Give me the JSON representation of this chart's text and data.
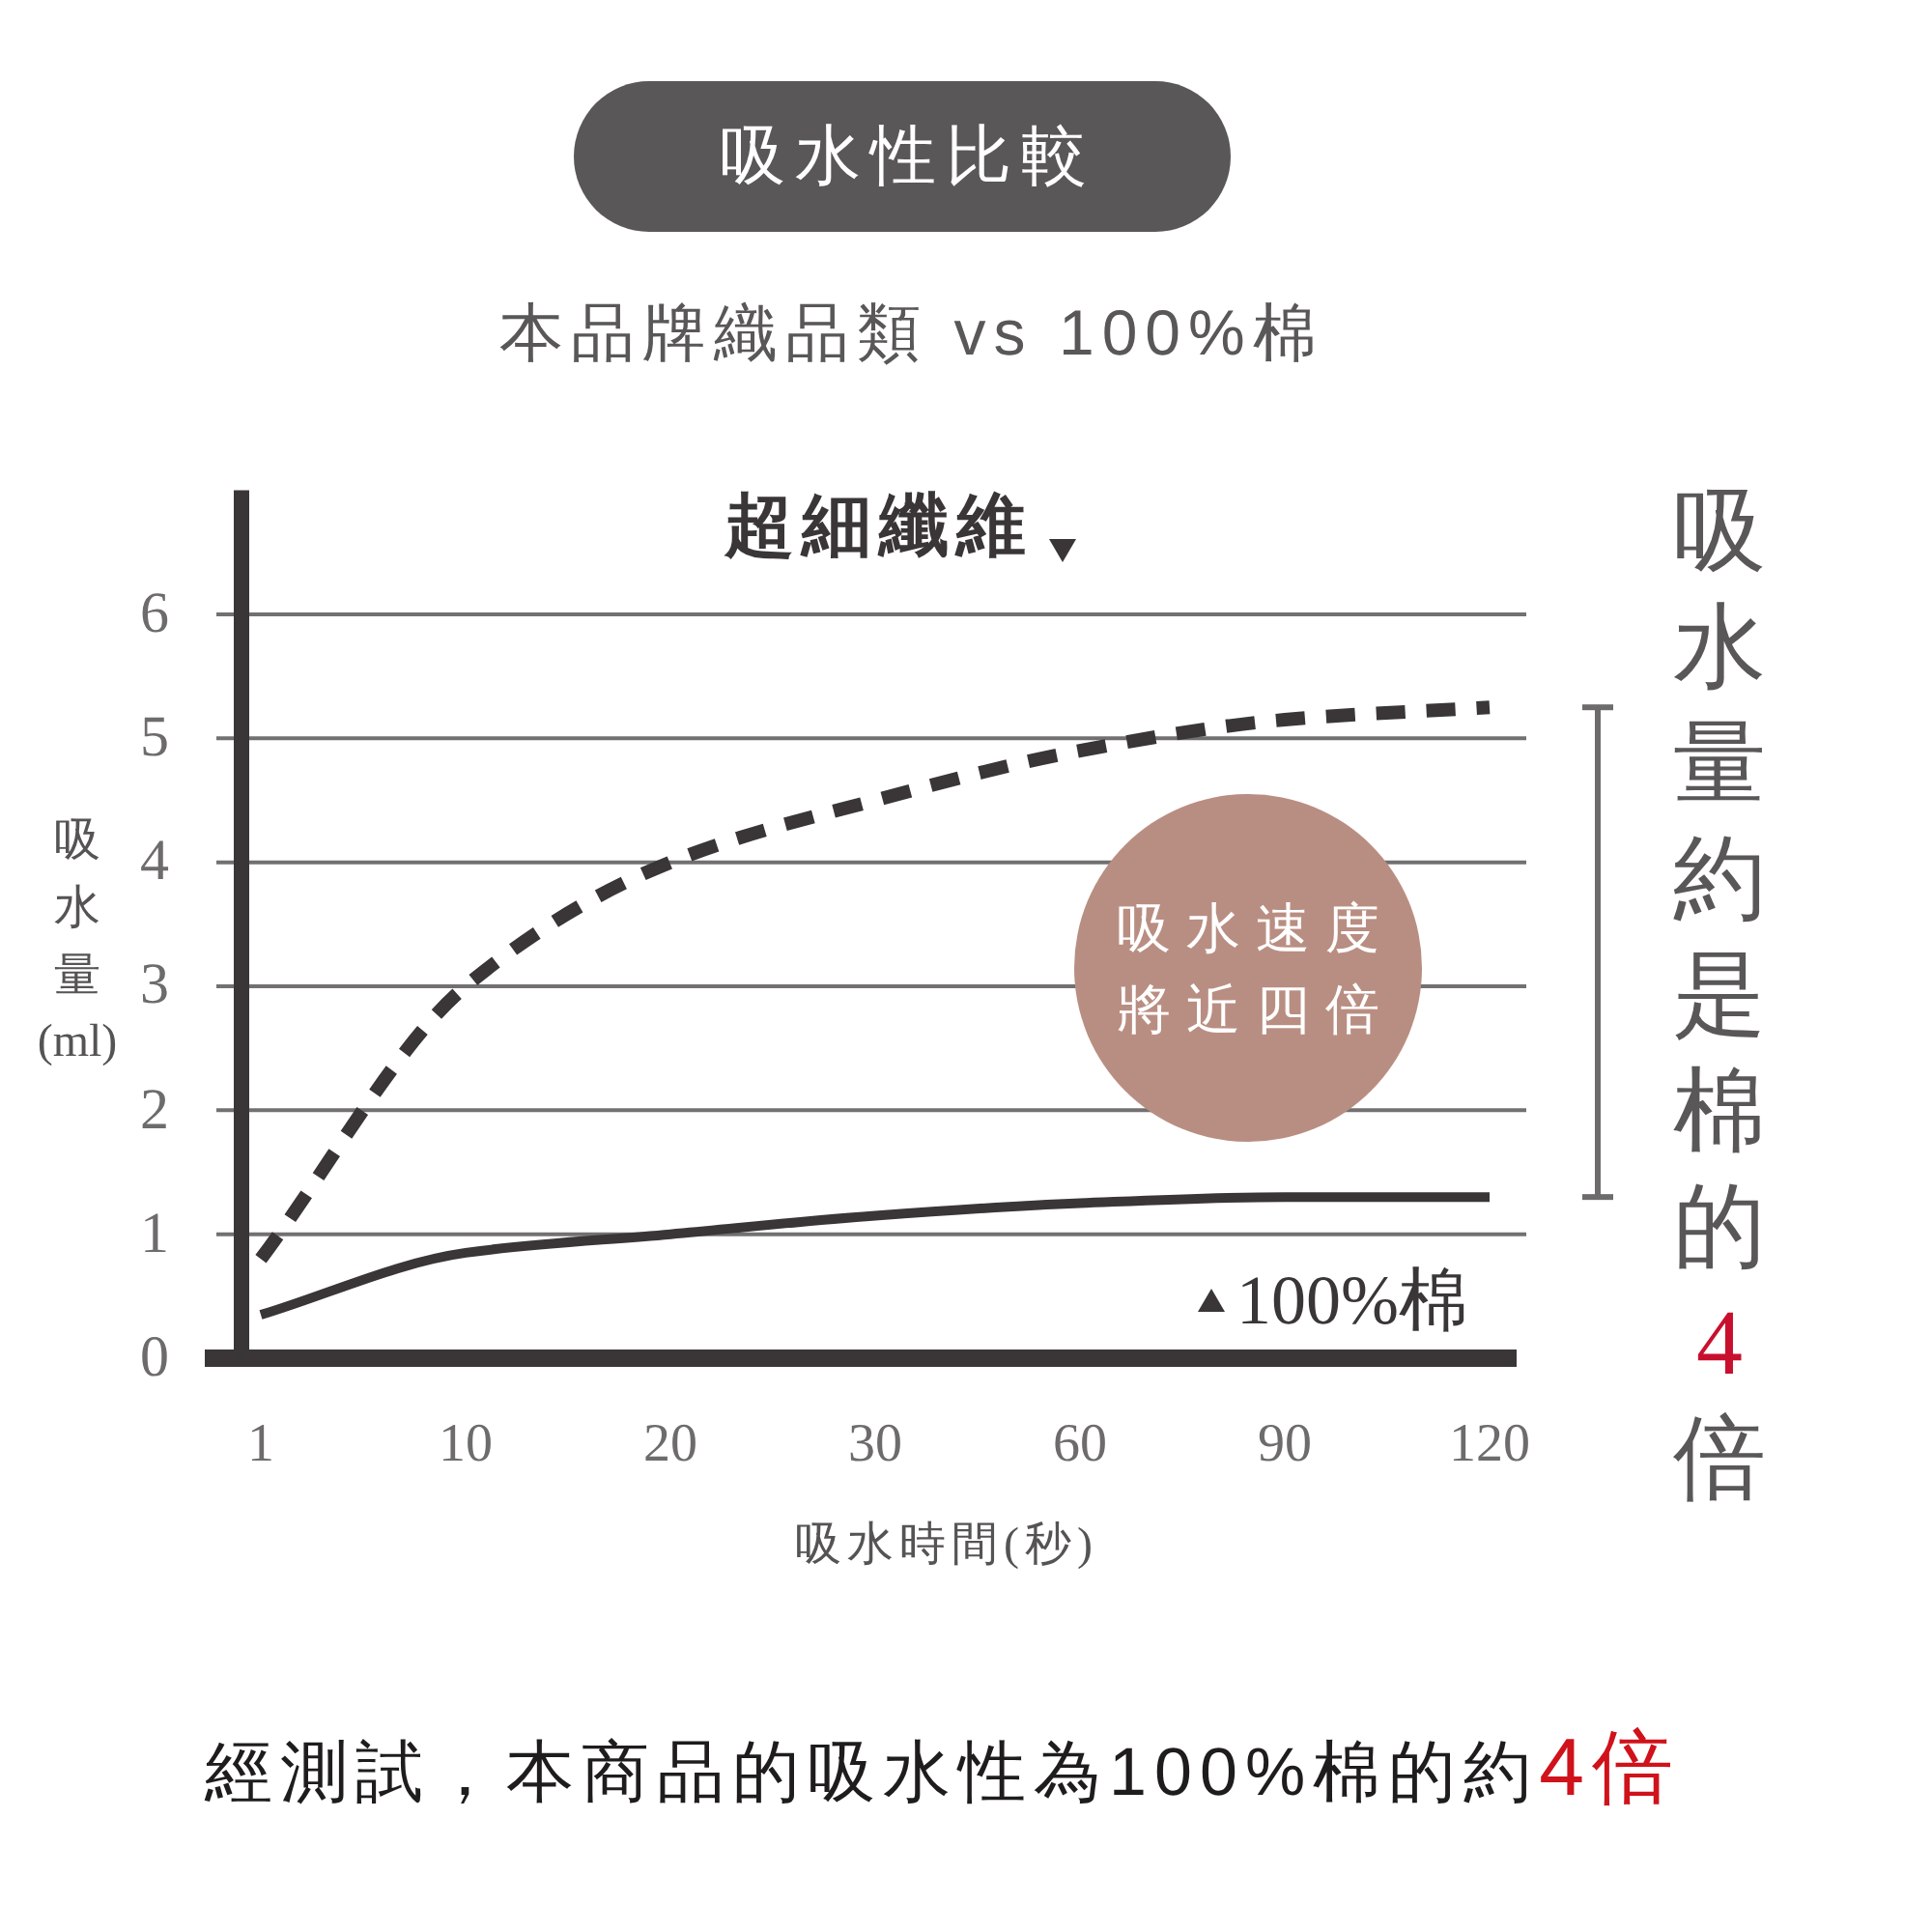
{
  "chart_data": {
    "type": "line",
    "title": "吸水性比較",
    "subtitle": "本品牌織品類 vs 100%棉",
    "xlabel": "吸水時間(秒)",
    "ylabel": "吸水量(ml)",
    "categories": [
      "1",
      "10",
      "20",
      "30",
      "60",
      "90",
      "120"
    ],
    "series": [
      {
        "name": "超細纖維",
        "color": "#3a3637",
        "line_style": "dashed",
        "values": [
          0.8,
          3.0,
          4.0,
          4.5,
          4.9,
          5.15,
          5.25
        ]
      },
      {
        "name": "100%棉",
        "color": "#3a3637",
        "line_style": "solid",
        "values": [
          0.35,
          0.85,
          1.0,
          1.15,
          1.25,
          1.3,
          1.3
        ]
      }
    ],
    "ylim": [
      0,
      7
    ],
    "yticks": [
      0,
      1,
      2,
      3,
      4,
      5,
      6
    ],
    "grid": "y",
    "annotations": [
      "吸水速度將近四倍",
      "吸水量約是棉的",
      "4",
      "倍",
      "經測試，本商品的吸水性為100%棉的約",
      "4倍"
    ]
  }
}
